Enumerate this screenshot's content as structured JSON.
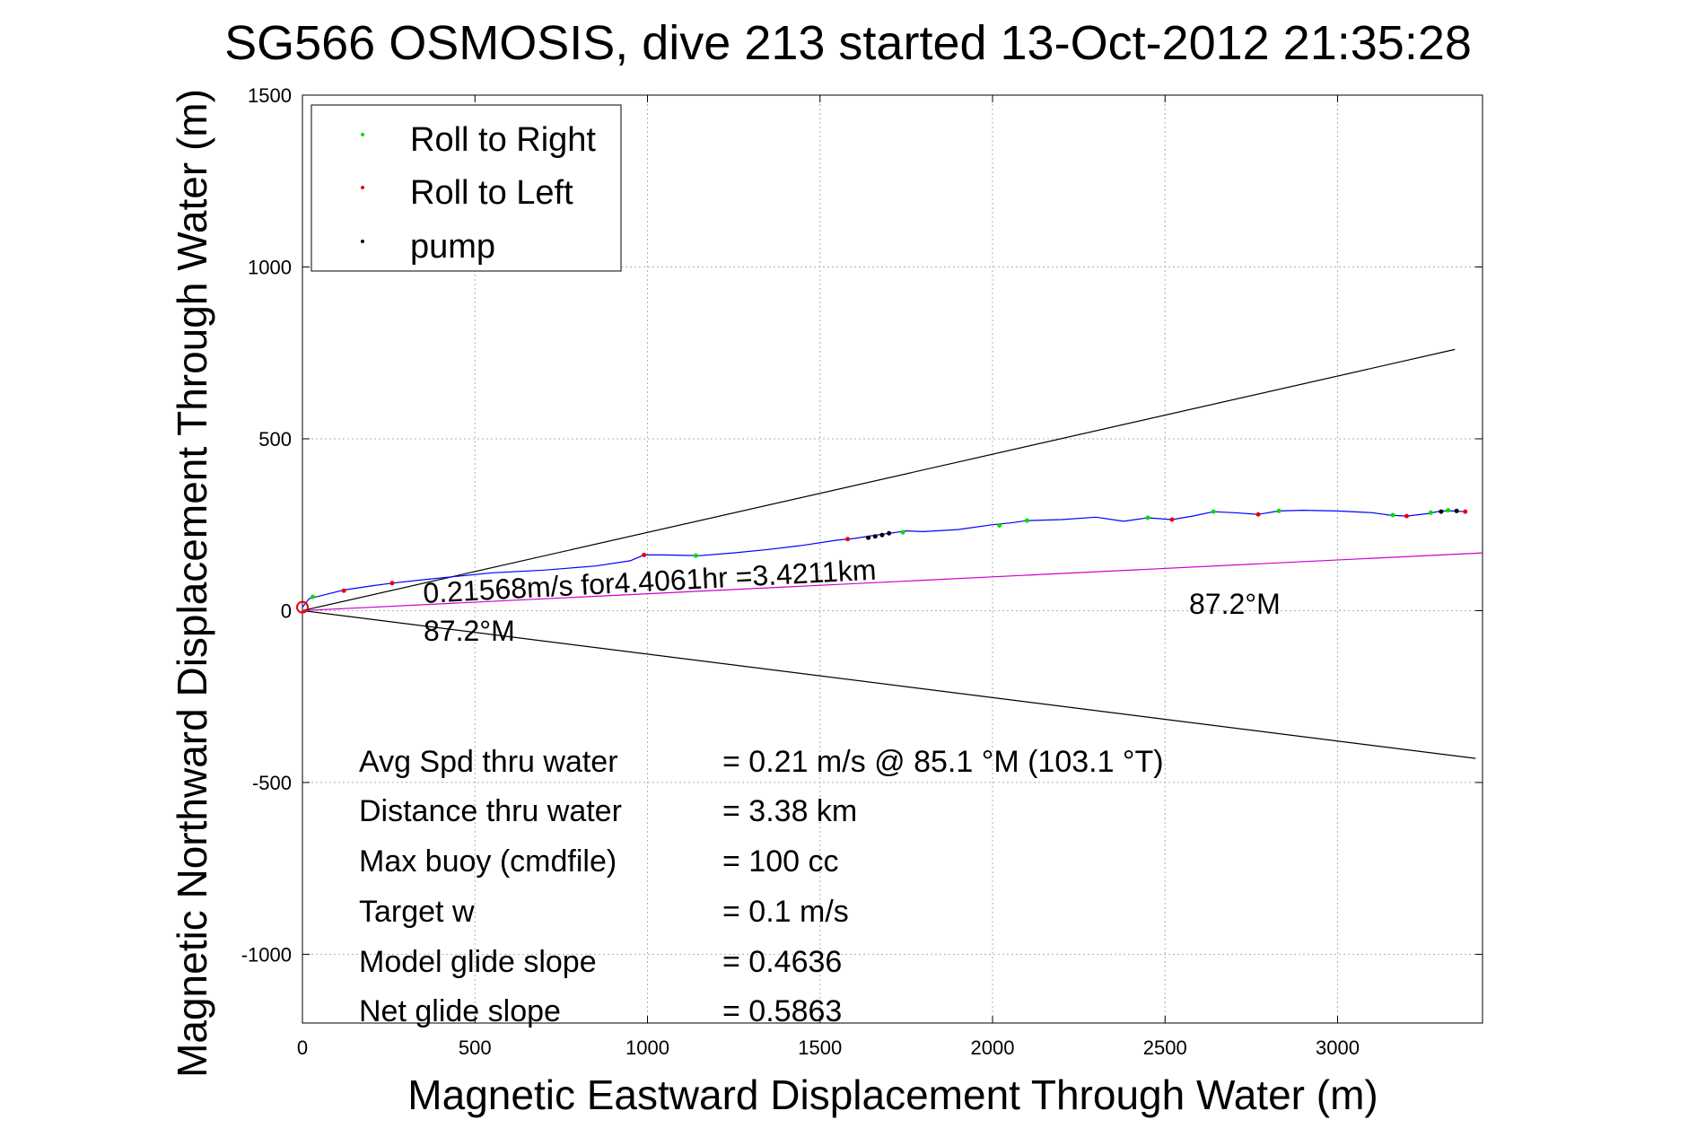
{
  "chart_data": {
    "type": "line",
    "title": "SG566 OSMOSIS, dive 213 started 13-Oct-2012 21:35:28",
    "xlabel": "Magnetic Eastward Displacement Through Water (m)",
    "ylabel": "Magnetic Northward Displacement Through Water (m)",
    "xlim": [
      0,
      3420
    ],
    "ylim": [
      -1200,
      1500
    ],
    "xticks": [
      0,
      500,
      1000,
      1500,
      2000,
      2500,
      3000
    ],
    "yticks": [
      -1000,
      -500,
      0,
      500,
      1000,
      1500
    ],
    "grid": true,
    "legend": {
      "placement": "top-left",
      "entries": [
        {
          "label": "Roll to Right",
          "color": "#00dd00"
        },
        {
          "label": "Roll to Left",
          "color": "#ee0000"
        },
        {
          "label": "pump",
          "color": "#000000"
        }
      ]
    },
    "track": {
      "color": "#0000ff",
      "points": [
        [
          0,
          10
        ],
        [
          20,
          35
        ],
        [
          60,
          45
        ],
        [
          120,
          60
        ],
        [
          200,
          72
        ],
        [
          260,
          80
        ],
        [
          350,
          90
        ],
        [
          450,
          100
        ],
        [
          550,
          110
        ],
        [
          700,
          118
        ],
        [
          850,
          130
        ],
        [
          950,
          145
        ],
        [
          990,
          162
        ],
        [
          1050,
          162
        ],
        [
          1150,
          160
        ],
        [
          1250,
          168
        ],
        [
          1350,
          178
        ],
        [
          1450,
          190
        ],
        [
          1550,
          205
        ],
        [
          1600,
          210
        ],
        [
          1650,
          218
        ],
        [
          1700,
          225
        ],
        [
          1750,
          232
        ],
        [
          1800,
          230
        ],
        [
          1900,
          236
        ],
        [
          2000,
          250
        ],
        [
          2050,
          255
        ],
        [
          2100,
          262
        ],
        [
          2200,
          265
        ],
        [
          2300,
          272
        ],
        [
          2380,
          260
        ],
        [
          2450,
          270
        ],
        [
          2520,
          265
        ],
        [
          2580,
          275
        ],
        [
          2640,
          288
        ],
        [
          2700,
          285
        ],
        [
          2770,
          280
        ],
        [
          2830,
          290
        ],
        [
          2900,
          292
        ],
        [
          3000,
          290
        ],
        [
          3100,
          285
        ],
        [
          3150,
          278
        ],
        [
          3200,
          275
        ],
        [
          3260,
          282
        ],
        [
          3300,
          290
        ],
        [
          3340,
          290
        ],
        [
          3370,
          288
        ]
      ]
    },
    "markers": {
      "roll_right": [
        [
          30,
          40
        ],
        [
          1140,
          160
        ],
        [
          1740,
          228
        ],
        [
          2020,
          248
        ],
        [
          2100,
          262
        ],
        [
          2450,
          270
        ],
        [
          2640,
          288
        ],
        [
          2830,
          290
        ],
        [
          3160,
          278
        ],
        [
          3270,
          285
        ],
        [
          3320,
          292
        ]
      ],
      "roll_left": [
        [
          120,
          58
        ],
        [
          260,
          80
        ],
        [
          990,
          162
        ],
        [
          1580,
          208
        ],
        [
          2520,
          265
        ],
        [
          2770,
          280
        ],
        [
          3200,
          275
        ],
        [
          3370,
          288
        ]
      ],
      "pump": [
        [
          1640,
          212
        ],
        [
          1660,
          216
        ],
        [
          1680,
          220
        ],
        [
          1700,
          225
        ],
        [
          3300,
          288
        ],
        [
          3345,
          290
        ]
      ]
    },
    "reference_lines": [
      {
        "name": "upper-bound",
        "color": "#000000",
        "points": [
          [
            0,
            0
          ],
          [
            3340,
            760
          ]
        ]
      },
      {
        "name": "lower-bound",
        "color": "#000000",
        "points": [
          [
            0,
            0
          ],
          [
            3400,
            -430
          ]
        ]
      },
      {
        "name": "heading",
        "color": "#cc00cc",
        "points": [
          [
            0,
            0
          ],
          [
            3420,
            168
          ]
        ]
      }
    ],
    "annotations": {
      "speed": "0.21568m/s for4.4061hr =3.4211km",
      "heading_left": "87.2°M",
      "heading_right": "87.2°M"
    },
    "stats": [
      {
        "label": "Avg Spd thru water",
        "value": "=  0.21 m/s @  85.1 °M (103.1 °T)"
      },
      {
        "label": "Distance thru water",
        "value": "=  3.38 km"
      },
      {
        "label": "Max buoy (cmdfile)",
        "value": "= 100 cc"
      },
      {
        "label": "Target w",
        "value": "= 0.1 m/s"
      },
      {
        "label": "Model glide slope",
        "value": "= 0.4636"
      },
      {
        "label": "Net glide slope",
        "value": "= 0.5863"
      }
    ]
  }
}
